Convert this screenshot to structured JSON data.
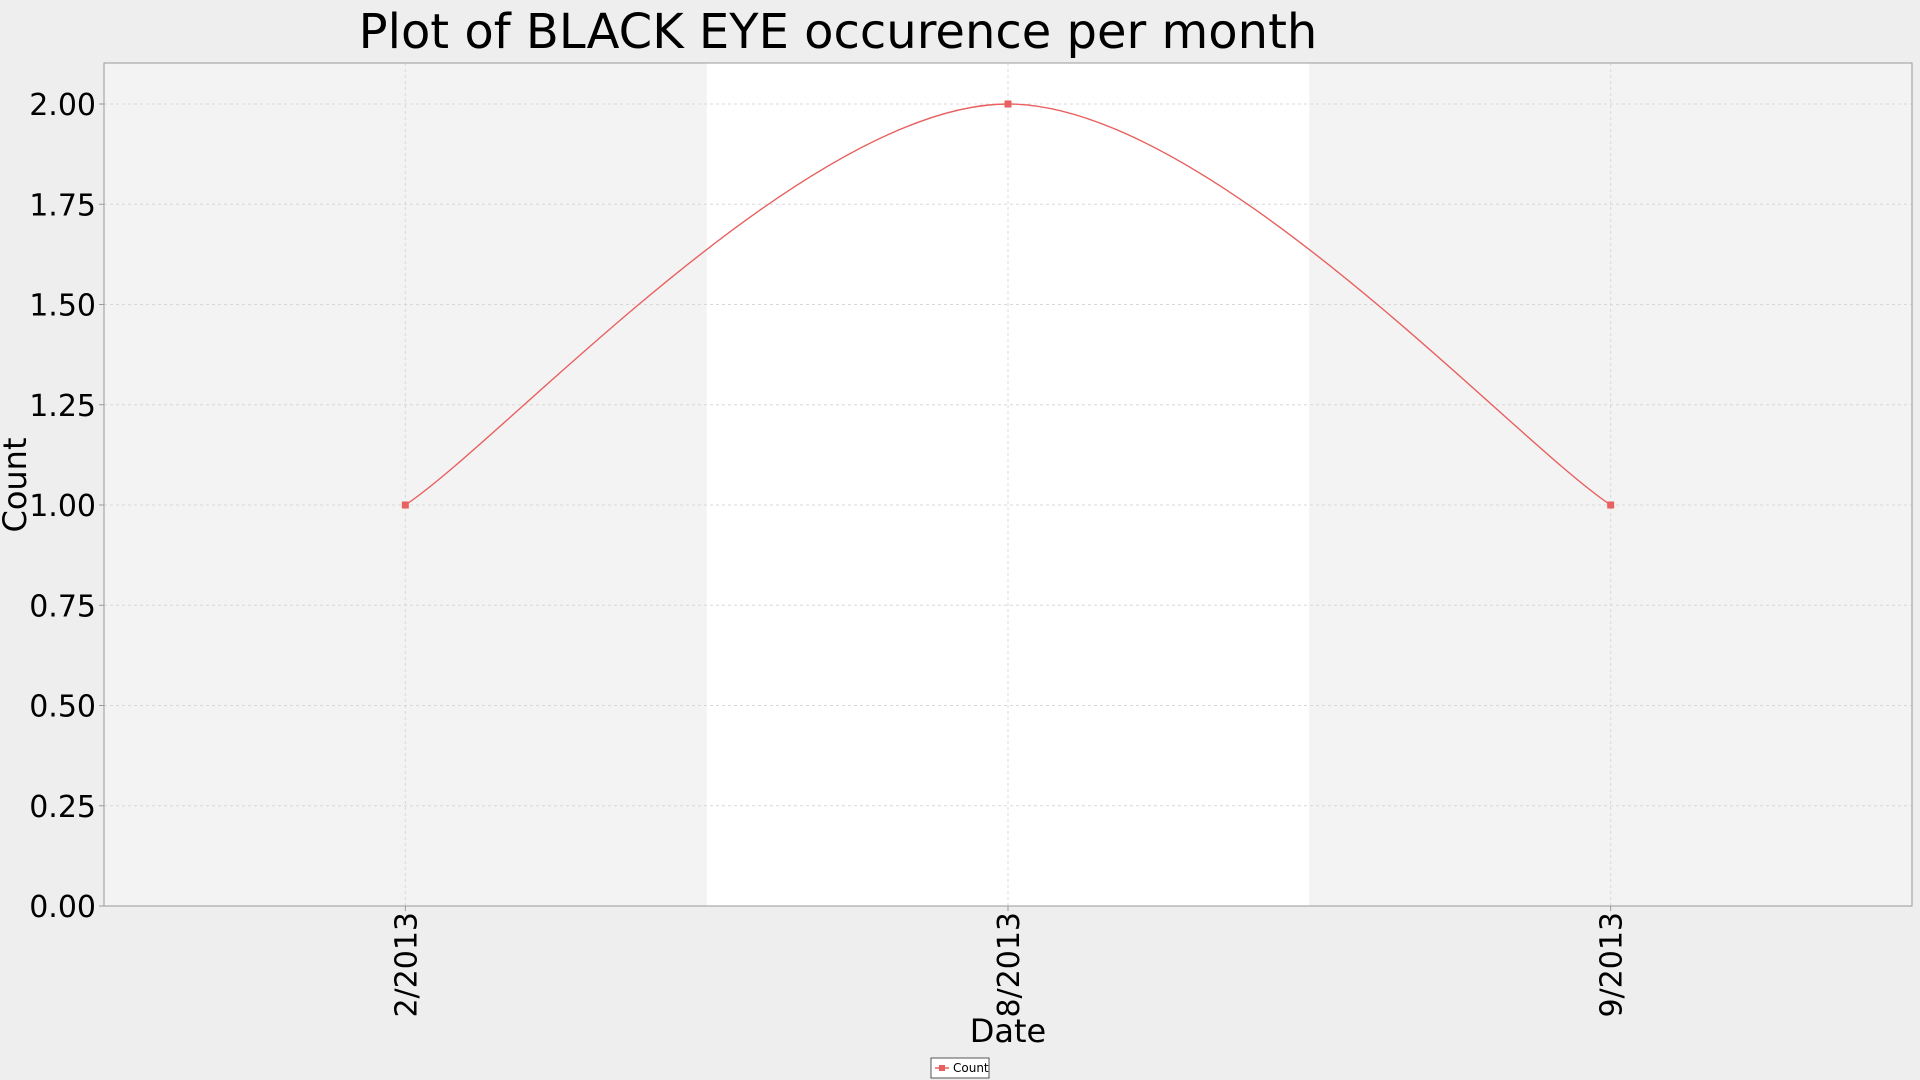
{
  "chart_data": {
    "type": "line",
    "title": "Plot of BLACK EYE occurence per month",
    "xlabel": "Date",
    "ylabel": "Count",
    "categories": [
      "2/2013",
      "8/2013",
      "9/2013"
    ],
    "series": [
      {
        "name": "Count",
        "values": [
          1.0,
          2.0,
          1.0
        ],
        "color": "#e8605f",
        "marker": "square",
        "smooth": true
      }
    ],
    "ylim": [
      0,
      2.0
    ],
    "yticks": [
      "0.00",
      "0.25",
      "0.50",
      "0.75",
      "1.00",
      "1.25",
      "1.50",
      "1.75",
      "2.00"
    ],
    "grid": true,
    "legend": {
      "placement": "bottom-center",
      "entries": [
        "Count"
      ]
    },
    "colors": {
      "page_background": "#eeeeee",
      "band_alternate": "#f3f3f3",
      "band_plain": "#ffffff",
      "line": "#e8605f"
    }
  }
}
